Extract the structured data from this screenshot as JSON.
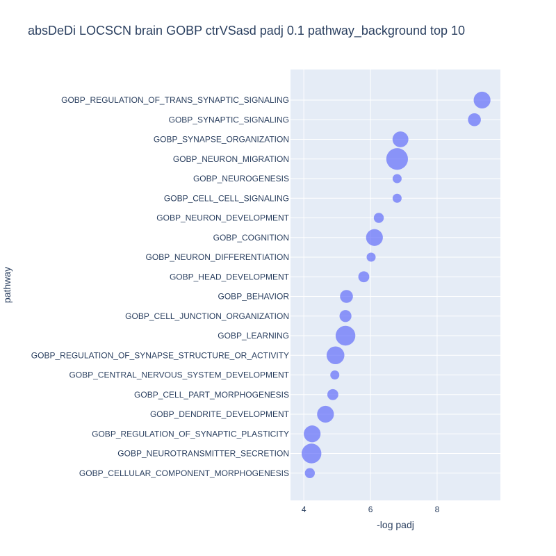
{
  "chart_data": {
    "type": "scatter",
    "title": "absDeDi LOCSCN brain GOBP ctrVSasd padj 0.1 pathway_background top 10",
    "xlabel": "-log padj",
    "ylabel": "pathway",
    "xlim": [
      3.6,
      9.9
    ],
    "xticks": [
      4,
      6,
      8
    ],
    "grid": true,
    "marker_color": "#636efa",
    "points": [
      {
        "pathway": "GOBP_REGULATION_OF_TRANS_SYNAPTIC_SIGNALING",
        "x": 9.35,
        "size": 1.0
      },
      {
        "pathway": "GOBP_SYNAPTIC_SIGNALING",
        "x": 9.12,
        "size": 0.8
      },
      {
        "pathway": "GOBP_SYNAPSE_ORGANIZATION",
        "x": 6.9,
        "size": 0.95
      },
      {
        "pathway": "GOBP_NEURON_MIGRATION",
        "x": 6.8,
        "size": 1.25
      },
      {
        "pathway": "GOBP_NEUROGENESIS",
        "x": 6.8,
        "size": 0.6
      },
      {
        "pathway": "GOBP_CELL_CELL_SIGNALING",
        "x": 6.8,
        "size": 0.6
      },
      {
        "pathway": "GOBP_NEURON_DEVELOPMENT",
        "x": 6.25,
        "size": 0.65
      },
      {
        "pathway": "GOBP_COGNITION",
        "x": 6.12,
        "size": 1.0
      },
      {
        "pathway": "GOBP_NEURON_DIFFERENTIATION",
        "x": 6.02,
        "size": 0.6
      },
      {
        "pathway": "GOBP_HEAD_DEVELOPMENT",
        "x": 5.8,
        "size": 0.7
      },
      {
        "pathway": "GOBP_BEHAVIOR",
        "x": 5.28,
        "size": 0.8
      },
      {
        "pathway": "GOBP_CELL_JUNCTION_ORGANIZATION",
        "x": 5.25,
        "size": 0.75
      },
      {
        "pathway": "GOBP_LEARNING",
        "x": 5.25,
        "size": 1.15
      },
      {
        "pathway": "GOBP_REGULATION_OF_SYNAPSE_STRUCTURE_OR_ACTIVITY",
        "x": 4.95,
        "size": 1.05
      },
      {
        "pathway": "GOBP_CENTRAL_NERVOUS_SYSTEM_DEVELOPMENT",
        "x": 4.93,
        "size": 0.6
      },
      {
        "pathway": "GOBP_CELL_PART_MORPHOGENESIS",
        "x": 4.87,
        "size": 0.7
      },
      {
        "pathway": "GOBP_DENDRITE_DEVELOPMENT",
        "x": 4.65,
        "size": 1.0
      },
      {
        "pathway": "GOBP_REGULATION_OF_SYNAPTIC_PLASTICITY",
        "x": 4.25,
        "size": 1.0
      },
      {
        "pathway": "GOBP_NEUROTRANSMITTER_SECRETION",
        "x": 4.23,
        "size": 1.15
      },
      {
        "pathway": "GOBP_CELLULAR_COMPONENT_MORPHOGENESIS",
        "x": 4.18,
        "size": 0.65
      }
    ]
  }
}
